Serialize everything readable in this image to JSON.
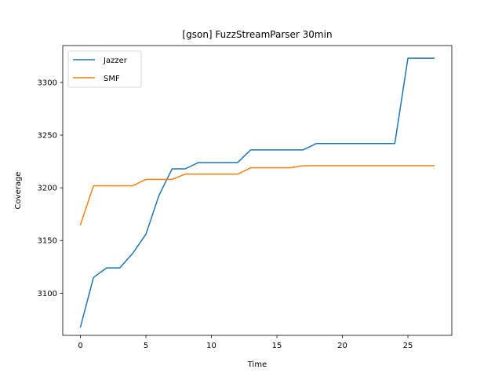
{
  "chart_data": {
    "type": "line",
    "title": "[gson] FuzzStreamParser 30min",
    "xlabel": "Time",
    "ylabel": "Coverage",
    "xlim": [
      -1.35,
      28.35
    ],
    "ylim": [
      3060,
      3335
    ],
    "xticks": [
      0,
      5,
      10,
      15,
      20,
      25
    ],
    "yticks": [
      3100,
      3150,
      3200,
      3250,
      3300
    ],
    "grid": false,
    "legend_position": "top-left",
    "series": [
      {
        "name": "Jazzer",
        "color": "#1f77b4",
        "x": [
          0,
          1,
          2,
          3,
          4,
          5,
          6,
          7,
          8,
          9,
          10,
          11,
          12,
          13,
          14,
          15,
          16,
          17,
          18,
          19,
          20,
          21,
          22,
          23,
          24,
          25,
          26,
          27
        ],
        "values": [
          3068,
          3115,
          3124,
          3124,
          3138,
          3156,
          3193,
          3218,
          3218,
          3224,
          3224,
          3224,
          3224,
          3236,
          3236,
          3236,
          3236,
          3236,
          3242,
          3242,
          3242,
          3242,
          3242,
          3242,
          3242,
          3323,
          3323,
          3323
        ]
      },
      {
        "name": "SMF",
        "color": "#ff7f0e",
        "x": [
          0,
          1,
          2,
          3,
          4,
          5,
          6,
          7,
          8,
          9,
          10,
          11,
          12,
          13,
          14,
          15,
          16,
          17,
          18,
          19,
          20,
          21,
          22,
          23,
          24,
          25,
          26,
          27
        ],
        "values": [
          3165,
          3202,
          3202,
          3202,
          3202,
          3208,
          3208,
          3208,
          3213,
          3213,
          3213,
          3213,
          3213,
          3219,
          3219,
          3219,
          3219,
          3221,
          3221,
          3221,
          3221,
          3221,
          3221,
          3221,
          3221,
          3221,
          3221,
          3221
        ]
      }
    ]
  }
}
